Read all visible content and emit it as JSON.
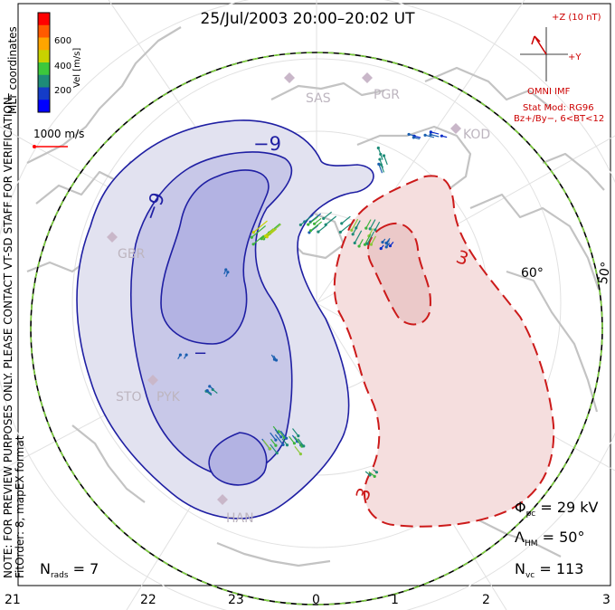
{
  "title": "25/Jul/2003 20:00–20:02 UT",
  "note_line1": "NOTE: FOR PREVIEW PURPOSES ONLY. PLEASE CONTACT VT-SD STAFF FOR VERIFICATION.",
  "note_line2": "FitOrder: 8, mapEX format",
  "mlt_label": "MLT coordinates",
  "colorbar": {
    "label": "Vel [m/s]",
    "ticks": [
      "600",
      "400",
      "200"
    ],
    "colors": [
      "#ff0000",
      "#ff5a00",
      "#ffa500",
      "#c8d200",
      "#3cc83c",
      "#1e8c78",
      "#143cc8",
      "#0000ff"
    ]
  },
  "velocity_scale": "1000 m/s",
  "imf": {
    "bz_label": "+Z (10 nT)",
    "by_label": "+Y",
    "source": "OMNI IMF",
    "stat_mod": "Stat Mod: RG96",
    "condition": "Bz+/By−, 6<BT<12"
  },
  "stats": {
    "phi_symbol": "Φ",
    "phi_sub": "pc",
    "phi_value": " = 29 kV",
    "lambda_symbol": "Λ",
    "lambda_sub": "HM",
    "lambda_value": " = 50°",
    "nvc_symbol": "N",
    "nvc_sub": "vc",
    "nvc_value": " = 113",
    "nrads_symbol": "N",
    "nrads_sub": "rads",
    "nrads_value": " = 7"
  },
  "mlt_ticks": [
    "21",
    "22",
    "23",
    "0",
    "1",
    "2",
    "3"
  ],
  "latitude_labels": [
    "60°",
    "50°"
  ],
  "radar_sites": [
    "SAS",
    "PGR",
    "KOD",
    "GBR",
    "STO",
    "PYK",
    "HAN"
  ],
  "contour_labels": [
    "−9",
    "−9",
    "−",
    "3",
    "3"
  ],
  "colors": {
    "negative_cell": "#1e1e9e",
    "positive_cell": "#cc1a1a",
    "boundary_green": "#7ccf3c",
    "annotation_red": "#cc0000"
  }
}
